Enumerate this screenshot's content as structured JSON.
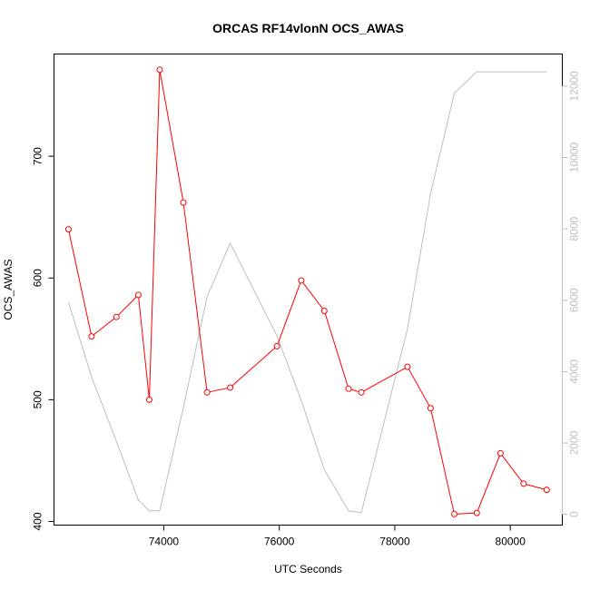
{
  "chart_data": {
    "type": "line",
    "title": "ORCAS RF14vlonN OCS_AWAS",
    "xlabel": "UTC Seconds",
    "ylabel": "OCS_AWAS",
    "xlim": [
      72100,
      80900
    ],
    "ylim": [
      397,
      784
    ],
    "y2lim": [
      -300,
      12900
    ],
    "x_ticks": [
      74000,
      76000,
      78000,
      80000
    ],
    "y_ticks": [
      400,
      500,
      600,
      700
    ],
    "y2_ticks": [
      0,
      2000,
      4000,
      6000,
      8000,
      10000,
      12000
    ],
    "grid": false,
    "legend": "none",
    "series": [
      {
        "axis": "left",
        "color": "#ff0000",
        "style": "line+open-circles",
        "points": [
          [
            72350,
            640
          ],
          [
            72750,
            552
          ],
          [
            73180,
            568
          ],
          [
            73560,
            586
          ],
          [
            73750,
            500
          ],
          [
            73930,
            771
          ],
          [
            74340,
            662
          ],
          [
            74750,
            506
          ],
          [
            75150,
            510
          ],
          [
            75960,
            544
          ],
          [
            76380,
            598
          ],
          [
            76780,
            573
          ],
          [
            77200,
            509
          ],
          [
            77420,
            506
          ],
          [
            78220,
            527
          ],
          [
            78620,
            493
          ],
          [
            79030,
            406
          ],
          [
            79420,
            407
          ],
          [
            79830,
            456
          ],
          [
            80230,
            431
          ],
          [
            80630,
            426
          ]
        ]
      },
      {
        "axis": "right",
        "color": "#bebebe",
        "style": "line",
        "points": [
          [
            72350,
            5950
          ],
          [
            72750,
            3850
          ],
          [
            73180,
            2050
          ],
          [
            73560,
            400
          ],
          [
            73750,
            100
          ],
          [
            73930,
            100
          ],
          [
            74340,
            3000
          ],
          [
            74750,
            6100
          ],
          [
            75150,
            7600
          ],
          [
            75960,
            5000
          ],
          [
            76380,
            3200
          ],
          [
            76780,
            1250
          ],
          [
            77200,
            100
          ],
          [
            77420,
            50
          ],
          [
            78220,
            5200
          ],
          [
            78620,
            9000
          ],
          [
            79030,
            11800
          ],
          [
            79420,
            12400
          ],
          [
            80230,
            12400
          ],
          [
            80630,
            12400
          ]
        ]
      }
    ]
  }
}
